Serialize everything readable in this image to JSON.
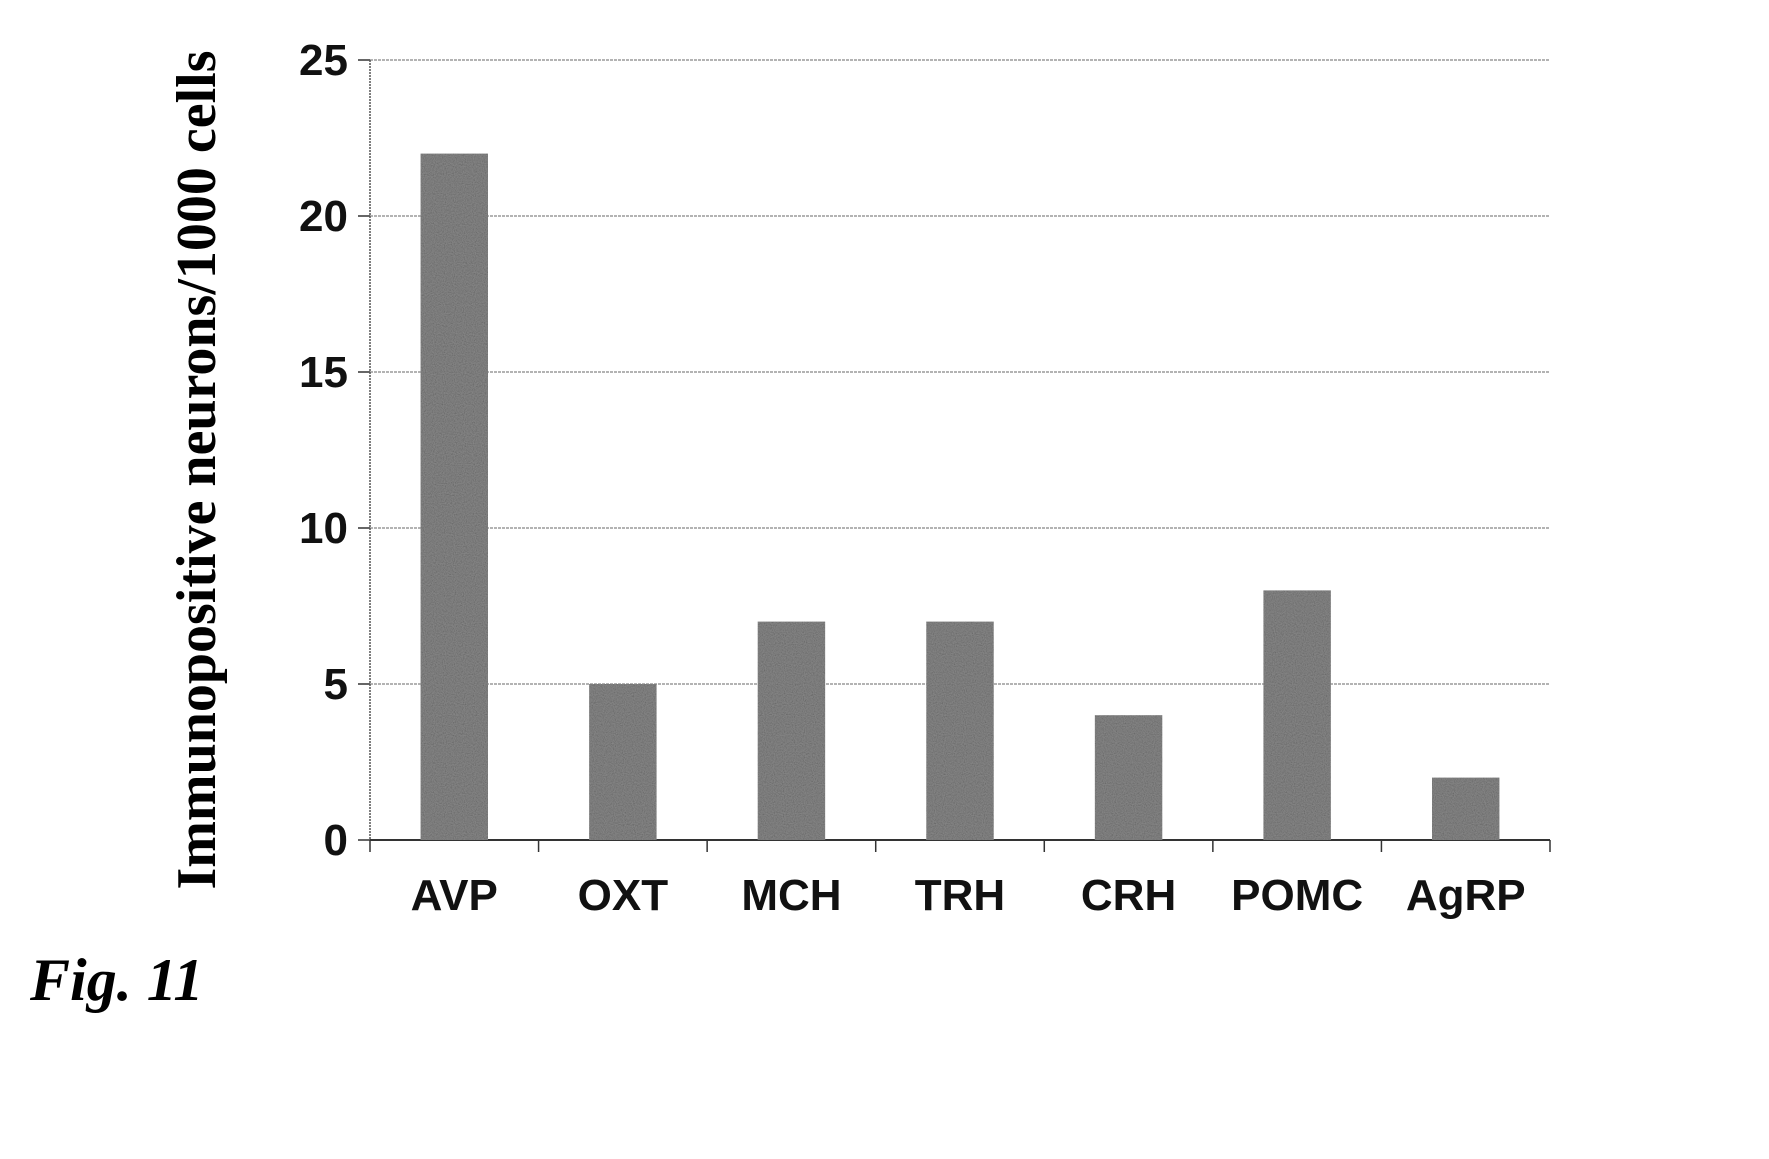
{
  "figure": {
    "caption": "Fig. 11"
  },
  "chart_data": {
    "type": "bar",
    "title": "",
    "xlabel": "",
    "ylabel": "Immunopositive neurons/1000 cells",
    "categories": [
      "AVP",
      "OXT",
      "MCH",
      "TRH",
      "CRH",
      "POMC",
      "AgRP"
    ],
    "values": [
      22,
      5,
      7,
      7,
      4,
      8,
      2
    ],
    "ylim": [
      0,
      25
    ],
    "yticks": [
      0,
      5,
      10,
      15,
      20,
      25
    ],
    "grid": true,
    "legend": "none",
    "bar_color": "#8c8c8c",
    "grid_color": "#9a9a9a"
  }
}
